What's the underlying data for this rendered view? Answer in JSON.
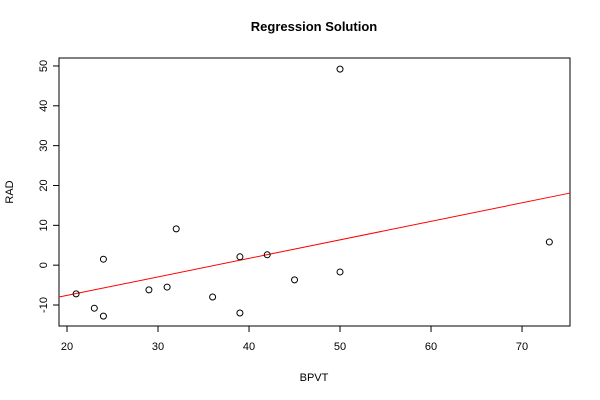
{
  "chart_data": {
    "type": "scatter",
    "title": "Regression Solution",
    "x_label": "BPVT",
    "y_label": "RAD",
    "x": [
      21,
      23,
      24,
      24,
      29,
      31,
      32,
      36,
      39,
      39,
      42,
      45,
      50,
      50,
      73
    ],
    "values": [
      -7.2,
      -10.8,
      1.5,
      -12.8,
      -6.2,
      -5.5,
      9.1,
      -8.0,
      2.1,
      -12.0,
      2.6,
      -3.7,
      49.2,
      -1.7,
      5.8
    ],
    "color": "#000000",
    "regression": {
      "x": [
        19.12,
        75.27
      ],
      "y": [
        -8.0,
        18.1
      ],
      "color": "#ff0000"
    },
    "xlim": [
      19.12,
      75.27
    ],
    "ylim": [
      -15.27,
      52.0
    ],
    "xticks": [
      20,
      30,
      40,
      50,
      60,
      70
    ],
    "yticks": [
      -10,
      0,
      10,
      20,
      30,
      40,
      50
    ]
  }
}
